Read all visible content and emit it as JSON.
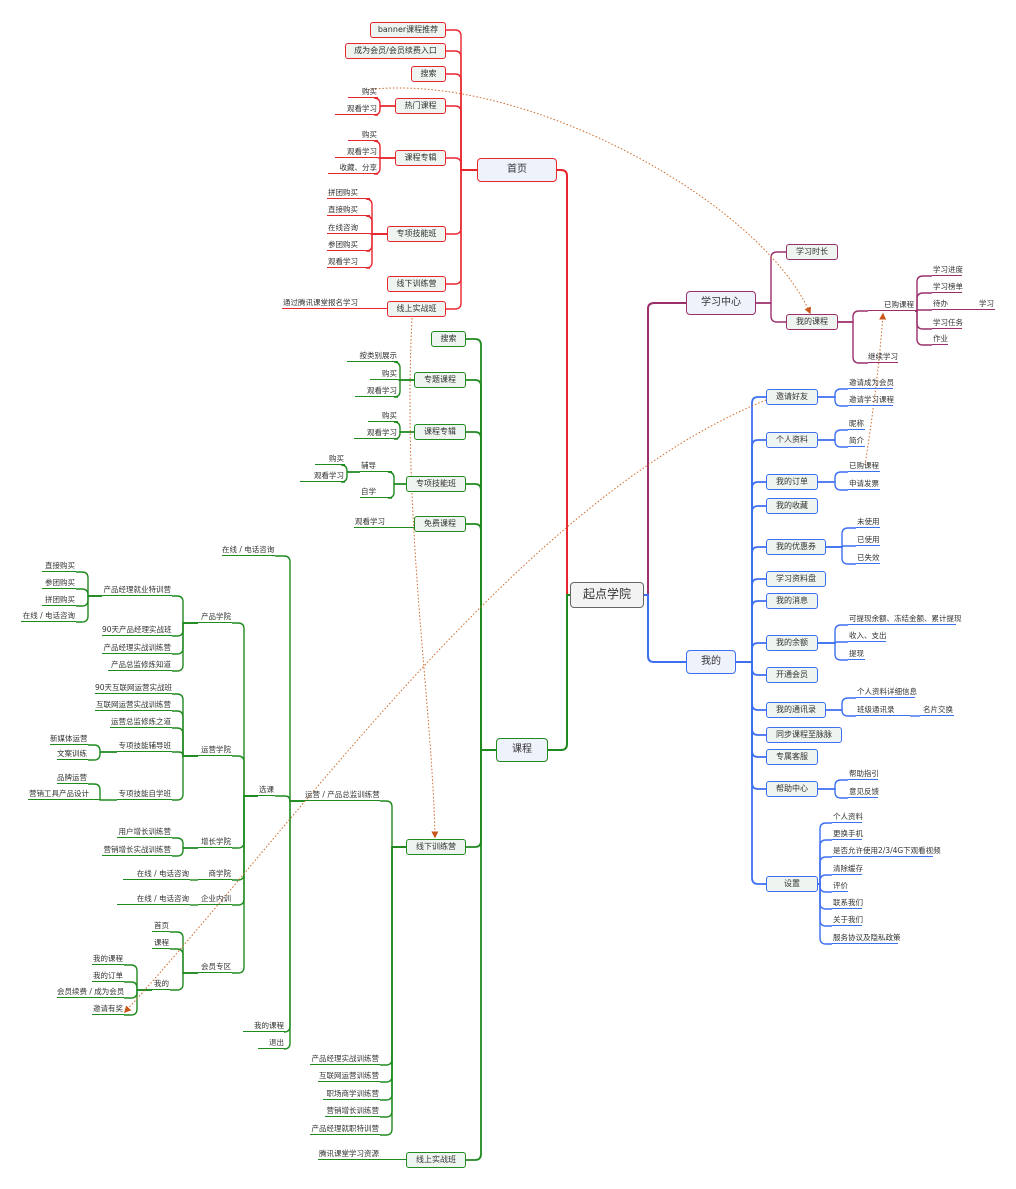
{
  "root": "起点学院",
  "colors": {
    "home": "#e8262e",
    "course": "#1f8a1f",
    "study": "#9b2f6b",
    "mine": "#3d6ff0",
    "relation": "#d2692a"
  },
  "home": {
    "label": "首页",
    "children": [
      {
        "label": "banner课程推荐"
      },
      {
        "label": "成为会员/会员续费入口"
      },
      {
        "label": "搜索"
      },
      {
        "label": "热门课程",
        "items": [
          "购买",
          "观看学习"
        ]
      },
      {
        "label": "课程专辑",
        "items": [
          "购买",
          "观看学习",
          "收藏、分享"
        ]
      },
      {
        "label": "专项技能班",
        "items": [
          "拼团购买",
          "直接购买",
          "在线咨询",
          "参团购买",
          "观看学习"
        ]
      },
      {
        "label": "线下训练营"
      },
      {
        "label": "线上实战班",
        "items": [
          "通过腾讯课堂报名学习"
        ]
      }
    ]
  },
  "course": {
    "label": "课程",
    "children": [
      {
        "label": "搜索"
      },
      {
        "label": "专题课程",
        "items": [
          "按类别展示",
          "购买",
          "观看学习"
        ]
      },
      {
        "label": "课程专辑",
        "items": [
          "购买",
          "观看学习"
        ]
      },
      {
        "label": "专项技能班",
        "items": [
          {
            "label": "辅导",
            "items": [
              "购买",
              "观看学习"
            ]
          },
          {
            "label": "自学"
          }
        ]
      },
      {
        "label": "免费课程",
        "items": [
          "观看学习"
        ]
      },
      {
        "label": "线下训练营",
        "items": [
          {
            "label": "运营 / 产品总监训练营",
            "items": [
              {
                "label": "在线 / 电话咨询"
              },
              {
                "label": "选课",
                "items": [
                  {
                    "label": "产品学院",
                    "items": [
                      {
                        "label": "产品经理就业特训营",
                        "items": [
                          "直接购买",
                          "参团购买",
                          "拼团购买",
                          "在线 / 电话咨询"
                        ]
                      },
                      {
                        "label": "90天产品经理实战班"
                      },
                      {
                        "label": "产品经理实战训练营"
                      },
                      {
                        "label": "产品总监修炼知道"
                      }
                    ]
                  },
                  {
                    "label": "运营学院",
                    "items": [
                      {
                        "label": "90天互联网运营实战班"
                      },
                      {
                        "label": "互联网运营实战训练营"
                      },
                      {
                        "label": "运营总监修炼之道"
                      },
                      {
                        "label": "专项技能辅导班",
                        "items": [
                          "新媒体运营",
                          "文案训练"
                        ]
                      },
                      {
                        "label": "专项技能自学班",
                        "items": [
                          "品牌运营",
                          "营销工具产品设计"
                        ]
                      }
                    ]
                  },
                  {
                    "label": "增长学院",
                    "items": [
                      "用户增长训练营",
                      "营销增长实战训练营"
                    ]
                  },
                  {
                    "label": "商学院",
                    "items": [
                      "在线 / 电话咨询"
                    ]
                  },
                  {
                    "label": "企业内训",
                    "items": [
                      "在线 / 电话咨询"
                    ]
                  },
                  {
                    "label": "会员专区",
                    "items": [
                      {
                        "label": "首页"
                      },
                      {
                        "label": "课程"
                      },
                      {
                        "label": "我的",
                        "items": [
                          "我的课程",
                          "我的订单",
                          "会员续费 / 成为会员",
                          "邀请有奖"
                        ]
                      }
                    ]
                  }
                ]
              },
              {
                "label": "我的课程"
              },
              {
                "label": "退出"
              }
            ]
          },
          {
            "label": "产品经理实战训练营"
          },
          {
            "label": "互联网运营训练营"
          },
          {
            "label": "职场商学训练营"
          },
          {
            "label": "营销增长训练营"
          },
          {
            "label": "产品经理就职特训营"
          }
        ]
      },
      {
        "label": "线上实战班",
        "items": [
          "腾讯课堂学习资源"
        ]
      }
    ]
  },
  "study": {
    "label": "学习中心",
    "children": [
      {
        "label": "学习时长"
      },
      {
        "label": "我的课程",
        "items": [
          {
            "label": "已购课程",
            "items": [
              {
                "label": "学习进度"
              },
              {
                "label": "学习榜单"
              },
              {
                "label": "待办",
                "items": [
                  "学习"
                ]
              },
              {
                "label": "学习任务"
              },
              {
                "label": "作业"
              }
            ]
          },
          {
            "label": "继续学习"
          }
        ]
      }
    ]
  },
  "mine": {
    "label": "我的",
    "children": [
      {
        "label": "邀请好友",
        "items": [
          "邀请成为会员",
          "邀请学习课程"
        ]
      },
      {
        "label": "个人资料",
        "items": [
          "昵称",
          "简介"
        ]
      },
      {
        "label": "我的订单",
        "items": [
          "已购课程",
          "申请发票"
        ]
      },
      {
        "label": "我的收藏"
      },
      {
        "label": "我的优惠券",
        "items": [
          "未使用",
          "已使用",
          "已失效"
        ]
      },
      {
        "label": "学习资料盘"
      },
      {
        "label": "我的消息"
      },
      {
        "label": "我的余额",
        "items": [
          "可提现余额、冻结金额、累计提现",
          "收入、支出",
          "提现"
        ]
      },
      {
        "label": "开通会员"
      },
      {
        "label": "我的通讯录",
        "items": [
          {
            "label": "个人资料详细信息"
          },
          {
            "label": "班级通讯录",
            "items": [
              "名片交换"
            ]
          }
        ]
      },
      {
        "label": "同步课程至脉脉"
      },
      {
        "label": "专属客服"
      },
      {
        "label": "帮助中心",
        "items": [
          "帮助指引",
          "意见反馈"
        ]
      },
      {
        "label": "设置",
        "items": [
          "个人资料",
          "更换手机",
          "是否允许使用2/3/4G下观看视频",
          "清除缓存",
          "评价",
          "联系我们",
          "关于我们",
          "服务协议及隐私政策"
        ]
      }
    ]
  }
}
